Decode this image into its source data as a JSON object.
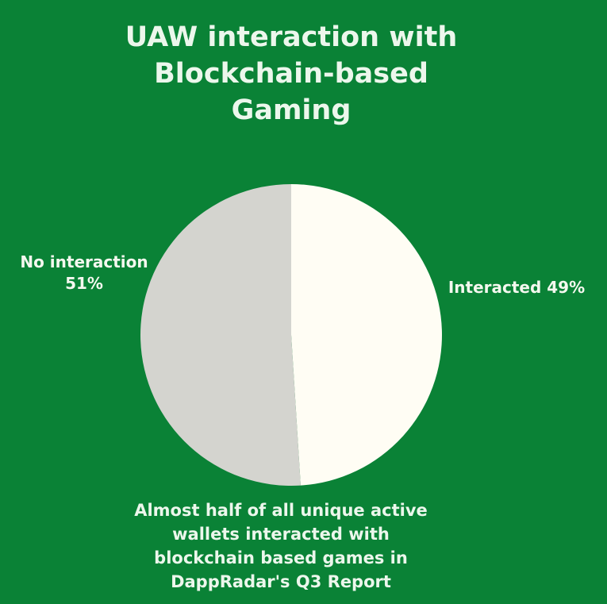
{
  "title_lines": [
    "UAW interaction with",
    "Blockchain-based",
    "Gaming"
  ],
  "caption_lines": [
    "Almost half of all unique active",
    "wallets interacted with",
    "blockchain based games in",
    "DappRadar's Q3 Report"
  ],
  "colors": {
    "background": "#0a8236",
    "text": "#ecf7ec"
  },
  "chart_data": {
    "type": "pie",
    "title": "UAW interaction with Blockchain-based Gaming",
    "slices": [
      {
        "label": "Interacted",
        "value": 49,
        "display": "Interacted 49%",
        "color": "#fffdf4"
      },
      {
        "label": "No interaction",
        "value": 51,
        "display_lines": [
          "No interaction",
          "51%"
        ],
        "color": "#d4d4cf"
      }
    ],
    "start_angle_deg": 0,
    "direction": "clockwise"
  }
}
